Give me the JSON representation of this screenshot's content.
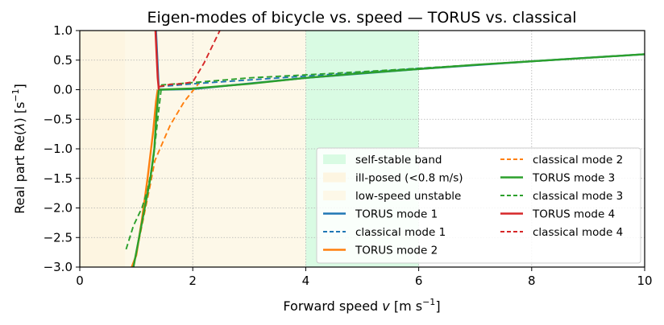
{
  "chart_data": {
    "type": "line",
    "title": "Eigen-modes of bicycle vs. speed — TORUS vs. classical",
    "xlabel": {
      "prefix": "Forward speed ",
      "var": "v",
      "unit": " [m s",
      "sup": "−1",
      "close": "]"
    },
    "ylabel": {
      "prefix": "Real part Re(",
      "var": "λ",
      "unit": ") [s",
      "sup": "−1",
      "close": "]"
    },
    "xlim": [
      0,
      10
    ],
    "ylim": [
      -3,
      1
    ],
    "xticks": [
      {
        "value": 0,
        "label": "0"
      },
      {
        "value": 2,
        "label": "2"
      },
      {
        "value": 4,
        "label": "4"
      },
      {
        "value": 6,
        "label": "6"
      },
      {
        "value": 8,
        "label": "8"
      },
      {
        "value": 10,
        "label": "10"
      }
    ],
    "yticks": [
      {
        "value": 1,
        "label": "1.0"
      },
      {
        "value": 0.5,
        "label": "0.5"
      },
      {
        "value": 0,
        "label": "0.0"
      },
      {
        "value": -0.5,
        "label": "−0.5"
      },
      {
        "value": -1,
        "label": "−1.0"
      },
      {
        "value": -1.5,
        "label": "−1.5"
      },
      {
        "value": -2,
        "label": "−2.0"
      },
      {
        "value": -2.5,
        "label": "−2.5"
      },
      {
        "value": -3,
        "label": "−3.0"
      }
    ],
    "grid": true,
    "legend_position": "lower-right",
    "bands": [
      {
        "name": "self-stable band",
        "x": [
          4,
          6
        ],
        "color": "#d9fbe3"
      },
      {
        "name": "ill-posed (<0.8 m/s)",
        "x": [
          0,
          0.8
        ],
        "color": "#fdf5e1"
      },
      {
        "name": "low-speed unstable",
        "x": [
          0,
          4
        ],
        "color": "#fdf8e8"
      }
    ],
    "series": [
      {
        "name": "TORUS mode 1",
        "color": "#1f77b4",
        "dash": "solid",
        "x": [
          1.35,
          1.4,
          2,
          4,
          6,
          8,
          10
        ],
        "y": [
          1.0,
          0.0,
          0.01,
          0.2,
          0.35,
          0.48,
          0.6
        ]
      },
      {
        "name": "classical mode 1",
        "color": "#1f77b4",
        "dash": "dashed",
        "x": [
          1.4,
          2,
          4,
          6,
          8,
          10
        ],
        "y": [
          0.05,
          0.1,
          0.23,
          0.36,
          0.48,
          0.6
        ]
      },
      {
        "name": "TORUS mode 2",
        "color": "#ff7f0e",
        "dash": "solid",
        "x": [
          0.92,
          1.0,
          1.1,
          1.2,
          1.3,
          1.35,
          1.38
        ],
        "y": [
          -3.0,
          -2.8,
          -2.2,
          -1.5,
          -0.7,
          -0.2,
          0.0
        ]
      },
      {
        "name": "classical mode 2",
        "color": "#ff7f0e",
        "dash": "dashed",
        "x": [
          0.95,
          1.1,
          1.25,
          1.33,
          1.42,
          1.6,
          1.85,
          2.1
        ],
        "y": [
          -3.0,
          -2.3,
          -1.6,
          -1.2,
          -1.0,
          -0.6,
          -0.2,
          0.1
        ]
      },
      {
        "name": "TORUS mode 3",
        "color": "#2ca02c",
        "dash": "solid",
        "x": [
          0.95,
          1.05,
          1.15,
          1.25,
          1.32,
          1.36,
          1.4,
          2,
          3,
          4,
          5,
          6,
          7,
          8,
          9,
          10
        ],
        "y": [
          -3.0,
          -2.5,
          -2.0,
          -1.5,
          -1.0,
          -0.4,
          0.0,
          0.02,
          0.1,
          0.2,
          0.28,
          0.35,
          0.42,
          0.48,
          0.54,
          0.6
        ]
      },
      {
        "name": "classical mode 3",
        "color": "#2ca02c",
        "dash": "dashed",
        "x": [
          0.82,
          0.95,
          1.1,
          1.2,
          1.3,
          1.38,
          1.45,
          2,
          3,
          4,
          6,
          8,
          10
        ],
        "y": [
          -2.7,
          -2.3,
          -2.0,
          -1.7,
          -1.2,
          -0.5,
          0.08,
          0.12,
          0.2,
          0.25,
          0.36,
          0.48,
          0.6
        ]
      },
      {
        "name": "TORUS mode 4",
        "color": "#d62728",
        "dash": "solid",
        "x": [
          1.34,
          1.36,
          1.38,
          1.4
        ],
        "y": [
          1.0,
          0.6,
          0.2,
          0.0
        ]
      },
      {
        "name": "classical mode 4",
        "color": "#d62728",
        "dash": "dashed",
        "x": [
          1.4,
          1.6,
          1.8,
          2.0,
          2.2,
          2.48
        ],
        "y": [
          0.05,
          0.09,
          0.1,
          0.13,
          0.45,
          1.0
        ]
      }
    ]
  }
}
